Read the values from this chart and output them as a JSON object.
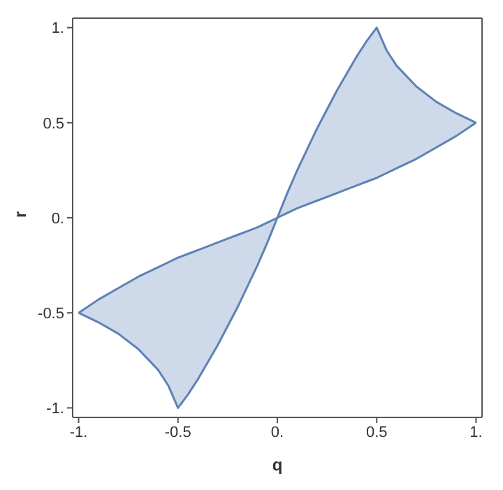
{
  "chart_data": {
    "type": "line",
    "xlabel": "q",
    "ylabel": "r",
    "xlim": [
      -1.03,
      1.03
    ],
    "ylim": [
      -1.05,
      1.05
    ],
    "xticks": [
      {
        "value": -1,
        "label": "-1."
      },
      -0.5,
      {
        "value": 0,
        "label": "0."
      },
      0.5,
      {
        "value": 1,
        "label": "1."
      }
    ],
    "yticks": [
      {
        "value": -1,
        "label": "-1."
      },
      -0.5,
      {
        "value": 0,
        "label": "0."
      },
      0.5,
      {
        "value": 1,
        "label": "1."
      }
    ],
    "marker": "none",
    "x": [
      -1,
      -0.9,
      -0.8,
      -0.7,
      -0.6,
      -0.55,
      -0.5,
      -0.45,
      -0.4,
      -0.35,
      -0.3,
      -0.25,
      -0.2,
      -0.15,
      -0.1,
      -0.05,
      0,
      0.05,
      0.1,
      0.15,
      0.2,
      0.25,
      0.3,
      0.35,
      0.4,
      0.45,
      0.5,
      0.55,
      0.6,
      0.7,
      0.8,
      0.9,
      1
    ],
    "series": [
      {
        "color": "#5e81b5",
        "values": [
          -0.5,
          -0.43,
          -0.37,
          -0.31,
          -0.26,
          -0.235,
          -0.21,
          -0.19,
          -0.17,
          -0.15,
          -0.13,
          -0.11,
          -0.09,
          -0.07,
          -0.05,
          -0.025,
          0,
          0.13,
          0.25,
          0.36,
          0.47,
          0.57,
          0.67,
          0.76,
          0.85,
          0.93,
          1,
          0.88,
          0.8,
          0.69,
          0.61,
          0.55,
          0.5
        ],
        "upper": [
          -0.5,
          -0.43,
          -0.37,
          -0.31,
          -0.26,
          -0.235,
          -0.21,
          -0.19,
          -0.17,
          -0.15,
          -0.13,
          -0.11,
          -0.09,
          -0.07,
          -0.05,
          -0.025,
          0,
          0.13,
          0.25,
          0.36,
          0.47,
          0.57,
          0.67,
          0.76,
          0.85,
          0.93,
          1,
          0.88,
          0.8,
          0.69,
          0.61,
          0.55,
          0.5
        ],
        "lower": [
          -0.5,
          -0.55,
          -0.61,
          -0.69,
          -0.8,
          -0.88,
          -1,
          -0.93,
          -0.85,
          -0.76,
          -0.67,
          -0.57,
          -0.47,
          -0.36,
          -0.25,
          -0.13,
          0,
          0.025,
          0.05,
          0.07,
          0.09,
          0.11,
          0.13,
          0.15,
          0.17,
          0.19,
          0.21,
          0.235,
          0.26,
          0.31,
          0.37,
          0.43,
          0.5
        ]
      },
      {
        "color": "#5e81b5",
        "values": [
          -0.5,
          -0.55,
          -0.61,
          -0.69,
          -0.8,
          -0.88,
          -1,
          -0.93,
          -0.85,
          -0.76,
          -0.67,
          -0.57,
          -0.47,
          -0.36,
          -0.25,
          -0.13,
          0,
          0.025,
          0.05,
          0.07,
          0.09,
          0.11,
          0.13,
          0.15,
          0.17,
          0.19,
          0.21,
          0.235,
          0.26,
          0.31,
          0.37,
          0.43,
          0.5
        ]
      }
    ]
  }
}
